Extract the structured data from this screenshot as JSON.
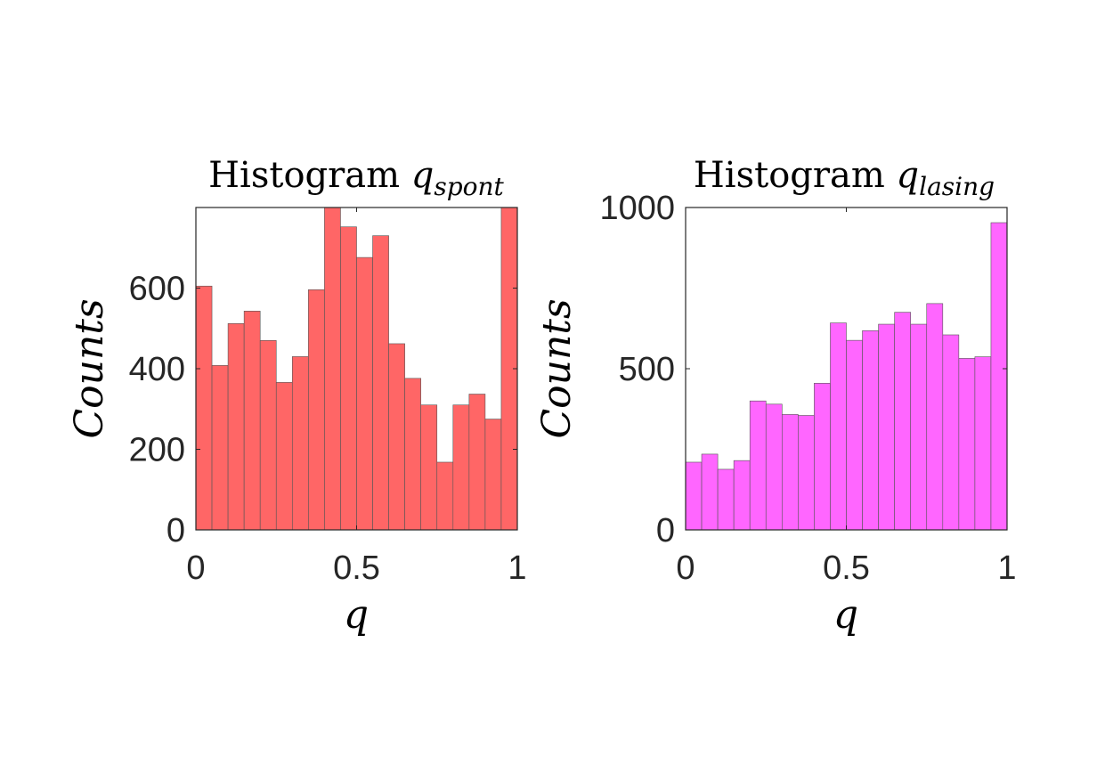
{
  "chart_data": [
    {
      "type": "bar",
      "title_prefix": "Histogram",
      "title_var": "q",
      "title_sub": "spont",
      "xlabel": "q",
      "ylabel": "Counts",
      "xlim": [
        0,
        1
      ],
      "ylim": [
        0,
        800
      ],
      "xticks": [
        0,
        0.5,
        1
      ],
      "xtick_labels": [
        "0",
        "0.5",
        "1"
      ],
      "yticks": [
        0,
        200,
        400,
        600
      ],
      "ytick_labels": [
        "0",
        "200",
        "400",
        "600"
      ],
      "bin_edges": [
        0,
        0.05,
        0.1,
        0.15,
        0.2,
        0.25,
        0.3,
        0.35,
        0.4,
        0.45,
        0.5,
        0.55,
        0.6,
        0.65,
        0.7,
        0.75,
        0.8,
        0.85,
        0.9,
        0.95,
        1.0
      ],
      "values": [
        605,
        408,
        512,
        543,
        470,
        366,
        430,
        596,
        800,
        752,
        676,
        730,
        462,
        376,
        310,
        168,
        310,
        337,
        275,
        800
      ],
      "color": "#ff6666",
      "grid": false
    },
    {
      "type": "bar",
      "title_prefix": "Histogram",
      "title_var": "q",
      "title_sub": "lasing",
      "xlabel": "q",
      "ylabel": "Counts",
      "xlim": [
        0,
        1
      ],
      "ylim": [
        0,
        1000
      ],
      "xticks": [
        0,
        0.5,
        1
      ],
      "xtick_labels": [
        "0",
        "0.5",
        "1"
      ],
      "yticks": [
        0,
        500,
        1000
      ],
      "ytick_labels": [
        "0",
        "500",
        "1000"
      ],
      "bin_edges": [
        0,
        0.05,
        0.1,
        0.15,
        0.2,
        0.25,
        0.3,
        0.35,
        0.4,
        0.45,
        0.5,
        0.55,
        0.6,
        0.65,
        0.7,
        0.75,
        0.8,
        0.85,
        0.9,
        0.95,
        1.0
      ],
      "values": [
        210,
        235,
        188,
        215,
        400,
        390,
        358,
        355,
        455,
        642,
        588,
        618,
        638,
        675,
        638,
        702,
        605,
        532,
        537,
        953
      ],
      "color": "#ff66ff",
      "grid": false
    }
  ]
}
